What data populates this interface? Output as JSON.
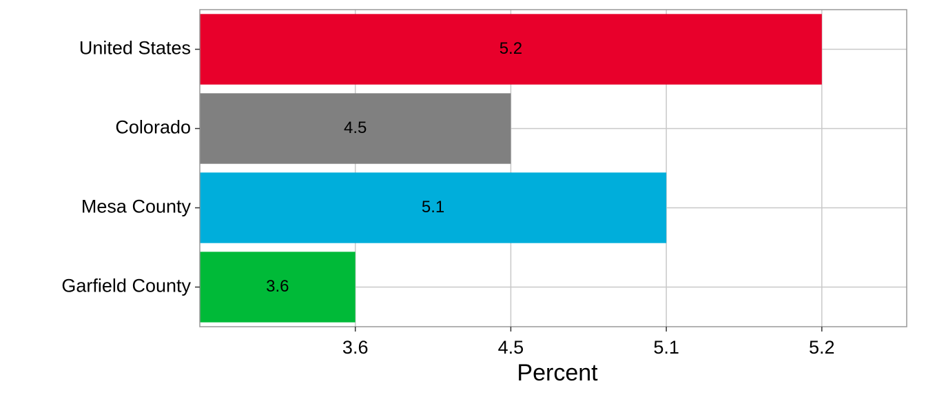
{
  "chart_data": {
    "type": "bar",
    "orientation": "horizontal",
    "x_scale": "discrete",
    "xlabel": "Percent",
    "categories": [
      "United States",
      "Colorado",
      "Mesa County",
      "Garfield County"
    ],
    "values": [
      5.2,
      4.5,
      5.1,
      3.6
    ],
    "colors": [
      "#e8002b",
      "#808080",
      "#00aedb",
      "#00ba38"
    ],
    "xticks": [
      3.6,
      4.5,
      5.1,
      5.2
    ],
    "grid": true
  }
}
